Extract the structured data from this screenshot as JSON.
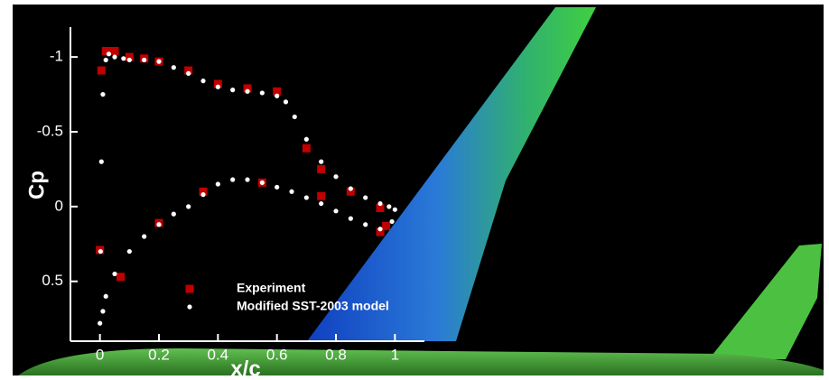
{
  "chart_data": {
    "type": "scatter",
    "xlabel": "x/c",
    "ylabel": "Cp",
    "xlim": [
      -0.1,
      1.1
    ],
    "xticks": [
      0,
      0.2,
      0.4,
      0.6,
      0.8,
      1
    ],
    "ylim": [
      0.9,
      -1.2
    ],
    "yticks": [
      -1,
      -0.5,
      0,
      0.5
    ],
    "series": [
      {
        "name": "Experiment",
        "color": "#c00000",
        "marker": "square",
        "x": [
          0,
          0.005,
          0.02,
          0.035,
          0.05,
          0.1,
          0.15,
          0.2,
          0.3,
          0.4,
          0.5,
          0.6,
          0.7,
          0.75,
          0.85,
          0.95,
          0.97,
          0.75,
          0.35,
          0.55,
          0.2,
          0.07,
          0.95
        ],
        "values": [
          0.29,
          -0.91,
          -1.04,
          -1.04,
          -1.04,
          -1.0,
          -0.99,
          -0.97,
          -0.91,
          -0.82,
          -0.79,
          -0.77,
          -0.39,
          -0.25,
          -0.1,
          0.01,
          0.13,
          -0.07,
          -0.1,
          -0.16,
          0.11,
          0.47,
          0.17
        ]
      },
      {
        "name": "Modified SST-2003 model",
        "color": "#ffffff",
        "marker": "dot",
        "x": [
          0,
          0.002,
          0.005,
          0.01,
          0.02,
          0.03,
          0.05,
          0.08,
          0.1,
          0.15,
          0.2,
          0.25,
          0.3,
          0.35,
          0.4,
          0.45,
          0.5,
          0.55,
          0.6,
          0.63,
          0.66,
          0.7,
          0.75,
          0.8,
          0.85,
          0.9,
          0.95,
          0.98,
          1.0,
          0.01,
          0.02,
          0.05,
          0.1,
          0.15,
          0.2,
          0.25,
          0.3,
          0.35,
          0.4,
          0.45,
          0.5,
          0.55,
          0.6,
          0.65,
          0.7,
          0.75,
          0.8,
          0.85,
          0.9,
          0.95,
          0.99
        ],
        "values": [
          0.78,
          0.3,
          -0.3,
          -0.75,
          -0.98,
          -1.02,
          -1.0,
          -0.99,
          -0.98,
          -0.98,
          -0.97,
          -0.93,
          -0.89,
          -0.84,
          -0.8,
          -0.78,
          -0.77,
          -0.76,
          -0.74,
          -0.7,
          -0.6,
          -0.45,
          -0.3,
          -0.2,
          -0.12,
          -0.06,
          -0.02,
          0.0,
          0.02,
          0.7,
          0.6,
          0.45,
          0.3,
          0.2,
          0.12,
          0.05,
          0.0,
          -0.08,
          -0.15,
          -0.18,
          -0.18,
          -0.16,
          -0.13,
          -0.1,
          -0.06,
          -0.02,
          0.03,
          0.08,
          0.12,
          0.15,
          0.1
        ]
      }
    ]
  }
}
